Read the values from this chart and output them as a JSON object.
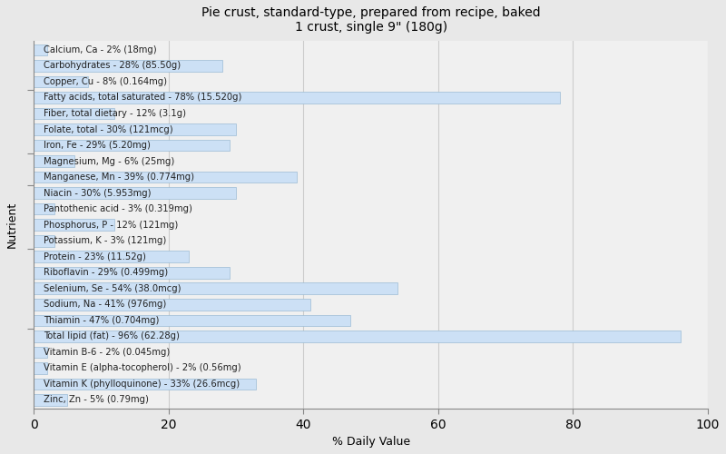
{
  "title": "Pie crust, standard-type, prepared from recipe, baked\n1 crust, single 9\" (180g)",
  "xlabel": "% Daily Value",
  "ylabel": "Nutrient",
  "xlim": [
    0,
    100
  ],
  "xticks": [
    0,
    20,
    40,
    60,
    80,
    100
  ],
  "fig_bg": "#e8e8e8",
  "plot_bg": "#f0f0f0",
  "bar_color": "#cce0f5",
  "bar_edge_color": "#9bbbd4",
  "label_color": "#222222",
  "label_fontsize": 7.2,
  "title_fontsize": 10,
  "nutrients": [
    {
      "label": "Calcium, Ca - 2% (18mg)",
      "value": 2
    },
    {
      "label": "Carbohydrates - 28% (85.50g)",
      "value": 28
    },
    {
      "label": "Copper, Cu - 8% (0.164mg)",
      "value": 8
    },
    {
      "label": "Fatty acids, total saturated - 78% (15.520g)",
      "value": 78
    },
    {
      "label": "Fiber, total dietary - 12% (3.1g)",
      "value": 12
    },
    {
      "label": "Folate, total - 30% (121mcg)",
      "value": 30
    },
    {
      "label": "Iron, Fe - 29% (5.20mg)",
      "value": 29
    },
    {
      "label": "Magnesium, Mg - 6% (25mg)",
      "value": 6
    },
    {
      "label": "Manganese, Mn - 39% (0.774mg)",
      "value": 39
    },
    {
      "label": "Niacin - 30% (5.953mg)",
      "value": 30
    },
    {
      "label": "Pantothenic acid - 3% (0.319mg)",
      "value": 3
    },
    {
      "label": "Phosphorus, P - 12% (121mg)",
      "value": 12
    },
    {
      "label": "Potassium, K - 3% (121mg)",
      "value": 3
    },
    {
      "label": "Protein - 23% (11.52g)",
      "value": 23
    },
    {
      "label": "Riboflavin - 29% (0.499mg)",
      "value": 29
    },
    {
      "label": "Selenium, Se - 54% (38.0mcg)",
      "value": 54
    },
    {
      "label": "Sodium, Na - 41% (976mg)",
      "value": 41
    },
    {
      "label": "Thiamin - 47% (0.704mg)",
      "value": 47
    },
    {
      "label": "Total lipid (fat) - 96% (62.28g)",
      "value": 96
    },
    {
      "label": "Vitamin B-6 - 2% (0.045mg)",
      "value": 2
    },
    {
      "label": "Vitamin E (alpha-tocopherol) - 2% (0.56mg)",
      "value": 2
    },
    {
      "label": "Vitamin K (phylloquinone) - 33% (26.6mcg)",
      "value": 33
    },
    {
      "label": "Zinc, Zn - 5% (0.79mg)",
      "value": 5
    }
  ],
  "grid_color": "#cccccc",
  "spine_color": "#888888"
}
